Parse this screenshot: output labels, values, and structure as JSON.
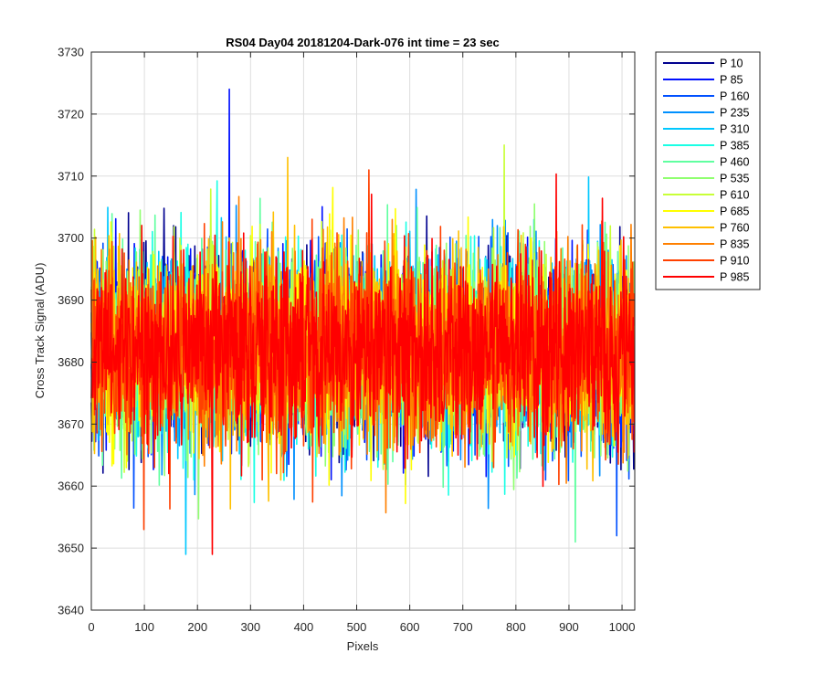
{
  "chart_data": {
    "type": "line",
    "title": "RS04 Day04 20181204-Dark-076 int time = 23 sec",
    "xlabel": "Pixels",
    "ylabel": "Cross Track Signal (ADU)",
    "xlim": [
      0,
      1024
    ],
    "ylim": [
      3640,
      3730
    ],
    "xticks": [
      "0",
      "100",
      "200",
      "300",
      "400",
      "500",
      "600",
      "700",
      "800",
      "900",
      "1000"
    ],
    "xtick_values": [
      0,
      100,
      200,
      300,
      400,
      500,
      600,
      700,
      800,
      900,
      1000
    ],
    "yticks": [
      "3640",
      "3650",
      "3660",
      "3670",
      "3680",
      "3690",
      "3700",
      "3710",
      "3720",
      "3730"
    ],
    "ytick_values": [
      3640,
      3650,
      3660,
      3670,
      3680,
      3690,
      3700,
      3710,
      3720,
      3730
    ],
    "grid": true,
    "legend_position": "outside-right",
    "n_points": 1024,
    "mean": 3682,
    "std": 7.5,
    "series": [
      {
        "name": "P 10",
        "color": "#00008f"
      },
      {
        "name": "P 85",
        "color": "#0010ff"
      },
      {
        "name": "P 160",
        "color": "#0050ff"
      },
      {
        "name": "P 235",
        "color": "#0090ff"
      },
      {
        "name": "P 310",
        "color": "#00c8ff"
      },
      {
        "name": "P 385",
        "color": "#1affe5"
      },
      {
        "name": "P 460",
        "color": "#60ffa0"
      },
      {
        "name": "P 535",
        "color": "#90ff70"
      },
      {
        "name": "P 610",
        "color": "#c8ff37"
      },
      {
        "name": "P 685",
        "color": "#ffff00"
      },
      {
        "name": "P 760",
        "color": "#ffc000"
      },
      {
        "name": "P 835",
        "color": "#ff8000"
      },
      {
        "name": "P 910",
        "color": "#ff4000"
      },
      {
        "name": "P 985",
        "color": "#ff0000"
      }
    ],
    "peaks": [
      {
        "series": "P 85",
        "x": 260,
        "y": 3724
      },
      {
        "series": "P 760",
        "x": 370,
        "y": 3713
      },
      {
        "series": "P 610",
        "x": 778,
        "y": 3715
      },
      {
        "series": "P 910",
        "x": 523,
        "y": 3711
      },
      {
        "series": "P 310",
        "x": 178,
        "y": 3649
      },
      {
        "series": "P 985",
        "x": 228,
        "y": 3649
      },
      {
        "series": "P 460",
        "x": 912,
        "y": 3651
      },
      {
        "series": "P 160",
        "x": 990,
        "y": 3652
      }
    ]
  }
}
